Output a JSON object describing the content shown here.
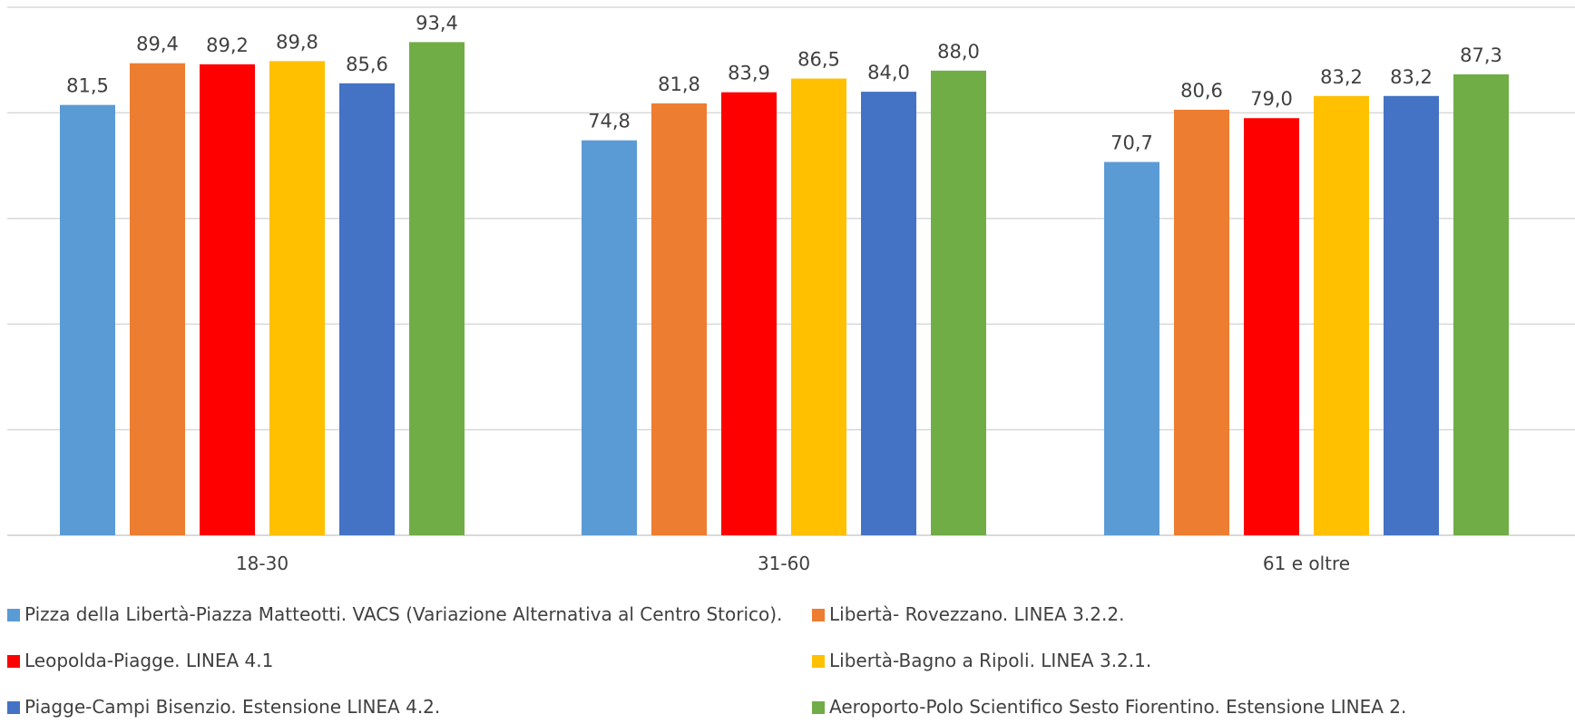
{
  "chart_data": {
    "type": "bar",
    "categories": [
      "18-30",
      "31-60",
      "61 e oltre"
    ],
    "series": [
      {
        "name": "Pizza della Libertà-Piazza Matteotti. VACS (Variazione Alternativa al Centro Storico).",
        "color": "#5B9BD5",
        "values": [
          81.5,
          74.8,
          70.7
        ],
        "labels": [
          "81,5",
          "74,8",
          "70,7"
        ]
      },
      {
        "name": "Libertà- Rovezzano. LINEA 3.2.2.",
        "color": "#ED7D31",
        "values": [
          89.4,
          81.8,
          80.6
        ],
        "labels": [
          "89,4",
          "81,8",
          "80,6"
        ]
      },
      {
        "name": "Leopolda-Piagge. LINEA 4.1",
        "color": "#FF0000",
        "values": [
          89.2,
          83.9,
          79.0
        ],
        "labels": [
          "89,2",
          "83,9",
          "79,0"
        ]
      },
      {
        "name": "Libertà-Bagno a Ripoli. LINEA 3.2.1.",
        "color": "#FFC000",
        "values": [
          89.8,
          86.5,
          83.2
        ],
        "labels": [
          "89,8",
          "86,5",
          "83,2"
        ]
      },
      {
        "name": "Piagge-Campi Bisenzio. Estensione LINEA 4.2.",
        "color": "#4472C4",
        "values": [
          85.6,
          84.0,
          83.2
        ],
        "labels": [
          "85,6",
          "84,0",
          "83,2"
        ]
      },
      {
        "name": "Aeroporto-Polo Scientifico Sesto Fiorentino. Estensione LINEA 2.",
        "color": "#70AD47",
        "values": [
          93.4,
          88.0,
          87.3
        ],
        "labels": [
          "93,4",
          "88,0",
          "87,3"
        ]
      }
    ],
    "ylim": [
      0,
      100
    ],
    "gridlines": true,
    "legend_position": "bottom",
    "title": "",
    "xlabel": "",
    "ylabel": ""
  }
}
